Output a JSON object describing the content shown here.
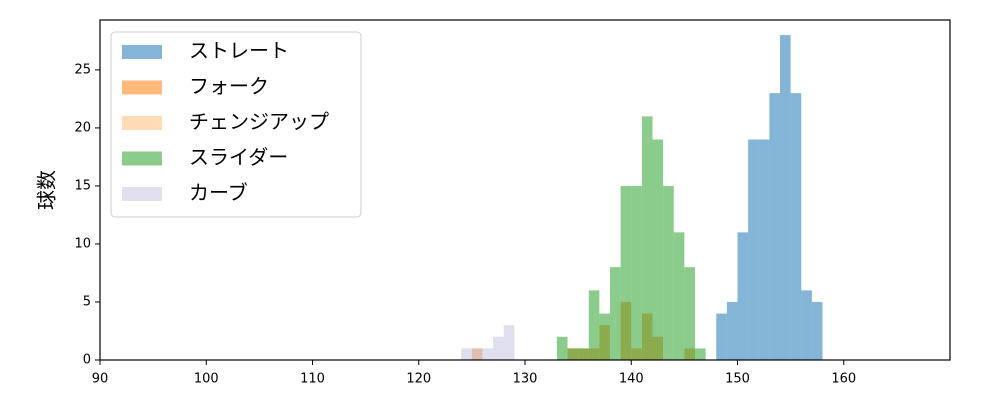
{
  "chart_data": {
    "type": "histogram",
    "y_label": "球数",
    "xlim": [
      90,
      170
    ],
    "ylim": [
      0,
      29.3
    ],
    "xticks": [
      90,
      100,
      110,
      120,
      130,
      140,
      150,
      160
    ],
    "yticks": [
      0,
      5,
      10,
      15,
      20,
      25
    ],
    "legend": "upper left",
    "alpha": 0.55,
    "series": [
      {
        "name": "ストレート",
        "color": "#1f77b4",
        "bins": [
          148,
          149,
          150,
          151,
          152,
          153,
          154,
          155,
          156,
          157,
          158
        ],
        "values": [
          4,
          5,
          11,
          19,
          19,
          23,
          28,
          23,
          6,
          5
        ]
      },
      {
        "name": "フォーク",
        "color": "#ff7f0e",
        "bins": [
          125,
          126,
          127,
          128,
          129,
          130,
          131,
          132,
          133,
          134,
          135,
          136,
          137,
          138,
          139,
          140,
          141,
          142,
          143,
          144,
          145,
          146
        ],
        "values": [
          1,
          0,
          0,
          0,
          0,
          0,
          0,
          0,
          0,
          1,
          1,
          1,
          3,
          0,
          5,
          1,
          4,
          2,
          0,
          0,
          1
        ]
      },
      {
        "name": "チェンジアップ",
        "color": "#ffbb78",
        "bins": [
          134,
          135
        ],
        "values": [
          1
        ]
      },
      {
        "name": "スライダー",
        "color": "#2ca02c",
        "bins": [
          133,
          134,
          135,
          136,
          137,
          138,
          139,
          140,
          141,
          142,
          143,
          144,
          145,
          146,
          147
        ],
        "values": [
          2,
          1,
          1,
          6,
          4,
          8,
          15,
          15,
          21,
          19,
          15,
          11,
          8,
          1
        ]
      },
      {
        "name": "カーブ",
        "color": "#c5c5e0",
        "bins": [
          124,
          125,
          126,
          127,
          128,
          129
        ],
        "values": [
          1,
          1,
          1,
          2,
          3
        ]
      }
    ]
  }
}
